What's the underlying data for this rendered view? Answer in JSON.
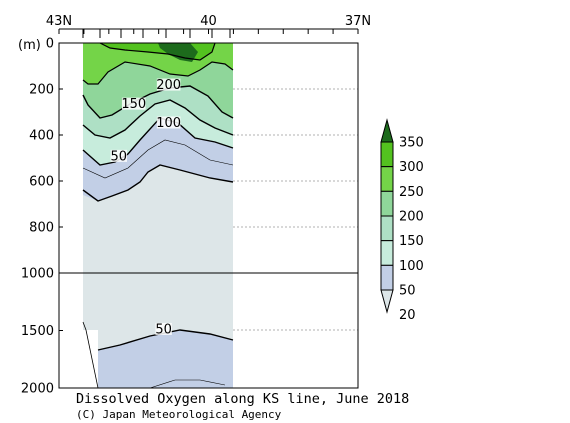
{
  "chart_data": {
    "type": "contour",
    "title": "Dissolved Oxygen along KS line, June 2018",
    "credit": "(C) Japan Meteorological Agency",
    "xaxis": {
      "tick_labels": [
        {
          "label": "43N",
          "lat": 43
        },
        {
          "label": "40",
          "lat": 40
        },
        {
          "label": "37N",
          "lat": 37
        }
      ],
      "range_lat": [
        43,
        37
      ]
    },
    "yaxis": {
      "unit_label": "(m)",
      "upper_ticks": [
        0,
        200,
        400,
        600,
        800,
        1000
      ],
      "lower_ticks": [
        1500,
        2000
      ],
      "upper_range": [
        0,
        1000
      ],
      "lower_range": [
        1000,
        2000
      ]
    },
    "colorbar": {
      "levels": [
        "20",
        "50",
        "100",
        "150",
        "200",
        "250",
        "300",
        "350"
      ],
      "colors": [
        "#dde6e8",
        "#c2cfe6",
        "#c7ecdc",
        "#aee0c5",
        "#8fd69a",
        "#74d448",
        "#53c21f",
        "#1d6b1c"
      ]
    },
    "contour_labels": [
      {
        "text": "200",
        "lat": 40.8,
        "depth": 185
      },
      {
        "text": "150",
        "lat": 41.5,
        "depth": 268
      },
      {
        "text": "100",
        "lat": 40.8,
        "depth": 350
      },
      {
        "text": "50",
        "lat": 41.8,
        "depth": 495
      },
      {
        "text": "50",
        "lat": 40.9,
        "depth": 1495
      }
    ],
    "data_extent_lat": [
      42.55,
      40.2
    ],
    "series_colors": {
      "ocean_low": "#dde6e8",
      "mid": "#c2cfe6"
    }
  }
}
